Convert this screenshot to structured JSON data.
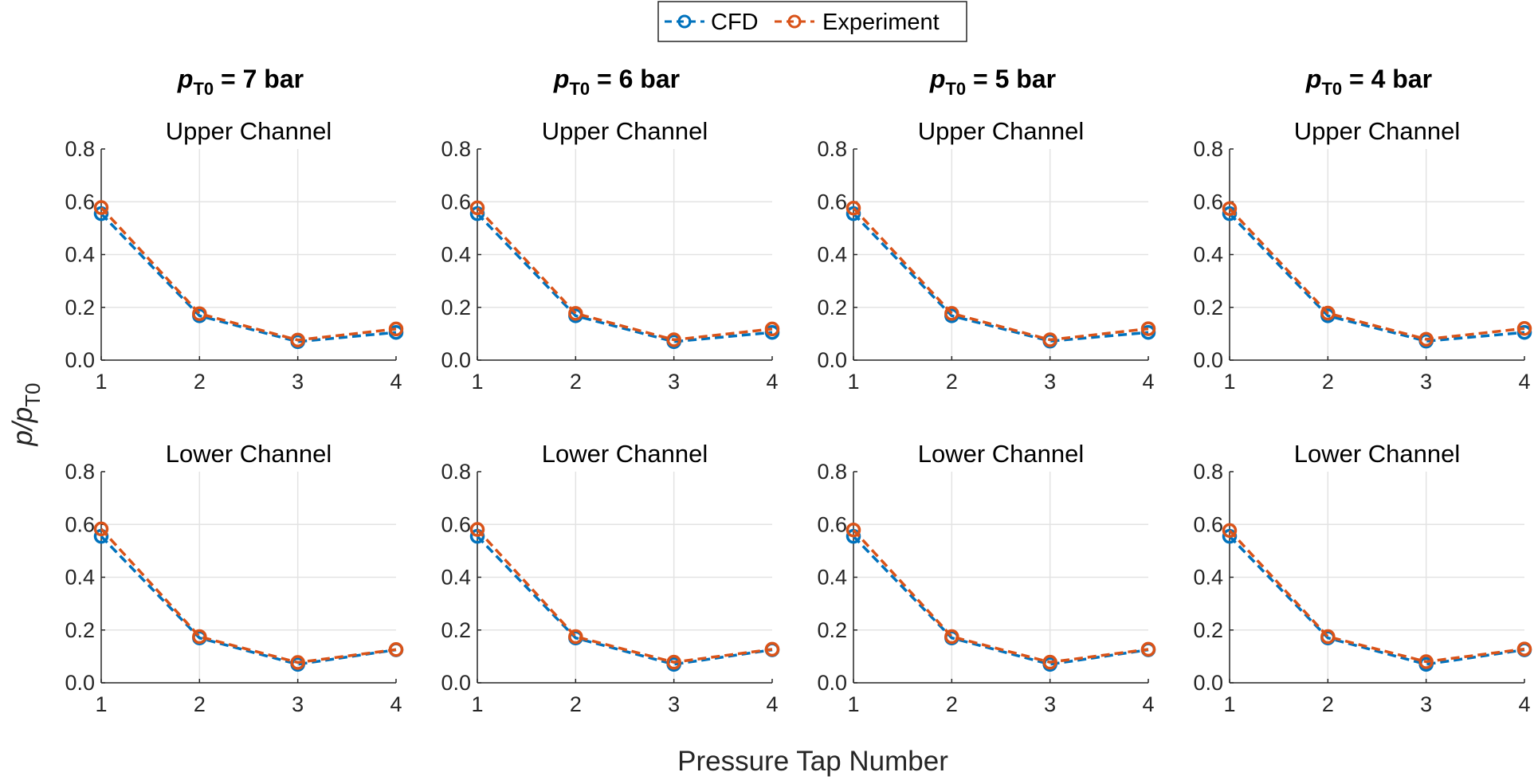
{
  "legend": {
    "position": "top-center",
    "entries": [
      {
        "label": "CFD",
        "color": "#0072BD"
      },
      {
        "label": "Experiment",
        "color": "#D95319"
      }
    ]
  },
  "xlabel": "Pressure Tap Number",
  "ylabel": {
    "main": "p/p",
    "sub": "T0"
  },
  "columns": [
    {
      "italic": "p",
      "sub": "T0",
      "rest": " = 7 bar"
    },
    {
      "italic": "p",
      "sub": "T0",
      "rest": " = 6 bar"
    },
    {
      "italic": "p",
      "sub": "T0",
      "rest": " = 5 bar"
    },
    {
      "italic": "p",
      "sub": "T0",
      "rest": " = 4 bar"
    }
  ],
  "rows": [
    {
      "title": "Upper Channel"
    },
    {
      "title": "Lower Channel"
    }
  ],
  "chart_data": [
    {
      "type": "line",
      "title": "Upper Channel",
      "xlim": [
        1,
        4
      ],
      "ylim": [
        0,
        0.8
      ],
      "grid": true,
      "x": [
        1,
        2,
        3,
        4
      ],
      "xticks": [
        "1",
        "2",
        "3",
        "4"
      ],
      "yticks": [
        "0.0",
        "0.2",
        "0.4",
        "0.6",
        "0.8"
      ],
      "series": [
        {
          "name": "CFD",
          "values": [
            0.555,
            0.168,
            0.07,
            0.105
          ]
        },
        {
          "name": "Experiment",
          "values": [
            0.578,
            0.176,
            0.076,
            0.118
          ]
        }
      ]
    },
    {
      "type": "line",
      "title": "Upper Channel",
      "xlim": [
        1,
        4
      ],
      "ylim": [
        0,
        0.8
      ],
      "grid": true,
      "x": [
        1,
        2,
        3,
        4
      ],
      "xticks": [
        "1",
        "2",
        "3",
        "4"
      ],
      "yticks": [
        "0.0",
        "0.2",
        "0.4",
        "0.6",
        "0.8"
      ],
      "series": [
        {
          "name": "CFD",
          "values": [
            0.555,
            0.168,
            0.07,
            0.105
          ]
        },
        {
          "name": "Experiment",
          "values": [
            0.577,
            0.177,
            0.077,
            0.118
          ]
        }
      ]
    },
    {
      "type": "line",
      "title": "Upper Channel",
      "xlim": [
        1,
        4
      ],
      "ylim": [
        0,
        0.8
      ],
      "grid": true,
      "x": [
        1,
        2,
        3,
        4
      ],
      "xticks": [
        "1",
        "2",
        "3",
        "4"
      ],
      "yticks": [
        "0.0",
        "0.2",
        "0.4",
        "0.6",
        "0.8"
      ],
      "series": [
        {
          "name": "CFD",
          "values": [
            0.555,
            0.168,
            0.072,
            0.105
          ]
        },
        {
          "name": "Experiment",
          "values": [
            0.576,
            0.177,
            0.077,
            0.119
          ]
        }
      ]
    },
    {
      "type": "line",
      "title": "Upper Channel",
      "xlim": [
        1,
        4
      ],
      "ylim": [
        0,
        0.8
      ],
      "grid": true,
      "x": [
        1,
        2,
        3,
        4
      ],
      "xticks": [
        "1",
        "2",
        "3",
        "4"
      ],
      "yticks": [
        "0.0",
        "0.2",
        "0.4",
        "0.6",
        "0.8"
      ],
      "series": [
        {
          "name": "CFD",
          "values": [
            0.555,
            0.168,
            0.072,
            0.105
          ]
        },
        {
          "name": "Experiment",
          "values": [
            0.574,
            0.178,
            0.079,
            0.12
          ]
        }
      ]
    },
    {
      "type": "line",
      "title": "Lower Channel",
      "xlim": [
        1,
        4
      ],
      "ylim": [
        0,
        0.8
      ],
      "grid": true,
      "x": [
        1,
        2,
        3,
        4
      ],
      "xticks": [
        "1",
        "2",
        "3",
        "4"
      ],
      "yticks": [
        "0.0",
        "0.2",
        "0.4",
        "0.6",
        "0.8"
      ],
      "series": [
        {
          "name": "CFD",
          "values": [
            0.555,
            0.17,
            0.07,
            0.125
          ]
        },
        {
          "name": "Experiment",
          "values": [
            0.583,
            0.175,
            0.077,
            0.126
          ]
        }
      ]
    },
    {
      "type": "line",
      "title": "Lower Channel",
      "xlim": [
        1,
        4
      ],
      "ylim": [
        0,
        0.8
      ],
      "grid": true,
      "x": [
        1,
        2,
        3,
        4
      ],
      "xticks": [
        "1",
        "2",
        "3",
        "4"
      ],
      "yticks": [
        "0.0",
        "0.2",
        "0.4",
        "0.6",
        "0.8"
      ],
      "series": [
        {
          "name": "CFD",
          "values": [
            0.555,
            0.17,
            0.07,
            0.125
          ]
        },
        {
          "name": "Experiment",
          "values": [
            0.581,
            0.175,
            0.078,
            0.127
          ]
        }
      ]
    },
    {
      "type": "line",
      "title": "Lower Channel",
      "xlim": [
        1,
        4
      ],
      "ylim": [
        0,
        0.8
      ],
      "grid": true,
      "x": [
        1,
        2,
        3,
        4
      ],
      "xticks": [
        "1",
        "2",
        "3",
        "4"
      ],
      "yticks": [
        "0.0",
        "0.2",
        "0.4",
        "0.6",
        "0.8"
      ],
      "series": [
        {
          "name": "CFD",
          "values": [
            0.555,
            0.17,
            0.07,
            0.125
          ]
        },
        {
          "name": "Experiment",
          "values": [
            0.579,
            0.175,
            0.078,
            0.127
          ]
        }
      ]
    },
    {
      "type": "line",
      "title": "Lower Channel",
      "xlim": [
        1,
        4
      ],
      "ylim": [
        0,
        0.8
      ],
      "grid": true,
      "x": [
        1,
        2,
        3,
        4
      ],
      "xticks": [
        "1",
        "2",
        "3",
        "4"
      ],
      "yticks": [
        "0.0",
        "0.2",
        "0.4",
        "0.6",
        "0.8"
      ],
      "series": [
        {
          "name": "CFD",
          "values": [
            0.555,
            0.17,
            0.07,
            0.125
          ]
        },
        {
          "name": "Experiment",
          "values": [
            0.577,
            0.175,
            0.08,
            0.128
          ]
        }
      ]
    }
  ]
}
